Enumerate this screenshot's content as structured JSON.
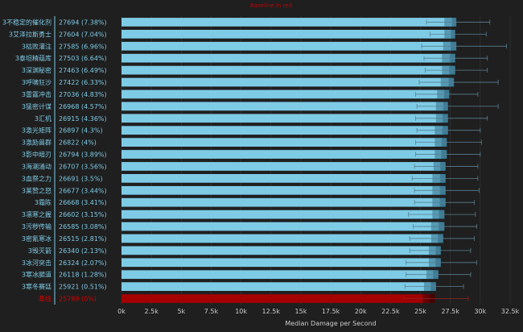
{
  "chart_data": {
    "type": "bar",
    "orientation": "horizontal",
    "title": "Baseline in red",
    "xlabel": "Median Damage per Second",
    "ylabel": "",
    "xlim": [
      0,
      32500
    ],
    "x_ticks": [
      0,
      2500,
      5000,
      7500,
      10000,
      12500,
      15000,
      17500,
      20000,
      22500,
      25000,
      27500,
      30000,
      32500
    ],
    "x_tick_labels": [
      "0k",
      "2.5k",
      "5k",
      "7.5k",
      "10k",
      "12.5k",
      "15k",
      "17.5k",
      "20k",
      "22.5k",
      "25k",
      "27.5k",
      "30k",
      "32.5k"
    ],
    "grid": "vertical",
    "colors": {
      "bar": "#7ecbe6",
      "bar_dark": "#3f7f9a",
      "baseline_bar": "#a40000",
      "baseline_bar_dark": "#4a0000",
      "label": "#7ecbe6",
      "baseline_label": "#d40000",
      "background": "#1f1f1f",
      "grid": "#3a3a3a"
    },
    "bars": [
      {
        "name": "3不稳定的催化剂",
        "value": 27694,
        "value_label": "27694 (7.38%)",
        "q_low": 27000,
        "q_high": 28000,
        "whisker_low": 25500,
        "whisker_high": 30800
      },
      {
        "name": "3艾泽拉斯勇士",
        "value": 27604,
        "value_label": "27604 (7.04%)",
        "q_low": 27000,
        "q_high": 27900,
        "whisker_low": 25800,
        "whisker_high": 30500
      },
      {
        "name": "3枯败灌注",
        "value": 27585,
        "value_label": "27585 (6.96%)",
        "q_low": 26900,
        "q_high": 28000,
        "whisker_low": 25100,
        "whisker_high": 32200
      },
      {
        "name": "3泰坦精蕴库",
        "value": 27503,
        "value_label": "27503 (6.64%)",
        "q_low": 26800,
        "q_high": 27900,
        "whisker_low": 25300,
        "whisker_high": 30600
      },
      {
        "name": "3深渊秘密",
        "value": 27463,
        "value_label": "27463 (6.49%)",
        "q_low": 26800,
        "q_high": 27900,
        "whisker_low": 25400,
        "whisker_high": 30600
      },
      {
        "name": "3呼啸狂沙",
        "value": 27422,
        "value_label": "27422 (6.33%)",
        "q_low": 26700,
        "q_high": 27800,
        "whisker_low": 24900,
        "whisker_high": 31500
      },
      {
        "name": "3雷霆冲击",
        "value": 27036,
        "value_label": "27036 (4.83%)",
        "q_low": 26400,
        "q_high": 27400,
        "whisker_low": 24600,
        "whisker_high": 29800
      },
      {
        "name": "3猛密计谋",
        "value": 26968,
        "value_label": "26968 (4.57%)",
        "q_low": 26300,
        "q_high": 27300,
        "whisker_low": 24700,
        "whisker_high": 31500
      },
      {
        "name": "3汇机",
        "value": 26915,
        "value_label": "26915 (4.36%)",
        "q_low": 26300,
        "q_high": 27300,
        "whisker_low": 24600,
        "whisker_high": 30600
      },
      {
        "name": "3激光矩阵",
        "value": 26897,
        "value_label": "26897 (4.3%)",
        "q_low": 26200,
        "q_high": 27300,
        "whisker_low": 24700,
        "whisker_high": 30000
      },
      {
        "name": "3激励兽群",
        "value": 26822,
        "value_label": "26822 (4%)",
        "q_low": 26200,
        "q_high": 27200,
        "whisker_low": 24600,
        "whisker_high": 30100
      },
      {
        "name": "3影中暗刃",
        "value": 26794,
        "value_label": "26794 (3.89%)",
        "q_low": 26200,
        "q_high": 27200,
        "whisker_low": 24600,
        "whisker_high": 30000
      },
      {
        "name": "3海潮涌动",
        "value": 26707,
        "value_label": "26707 (3.56%)",
        "q_low": 26100,
        "q_high": 27100,
        "whisker_low": 24500,
        "whisker_high": 29800
      },
      {
        "name": "3血祭之力",
        "value": 26691,
        "value_label": "26691 (3.5%)",
        "q_low": 26000,
        "q_high": 27100,
        "whisker_low": 24300,
        "whisker_high": 29800
      },
      {
        "name": "3莱赞之怒",
        "value": 26677,
        "value_label": "26677 (3.44%)",
        "q_low": 26000,
        "q_high": 27100,
        "whisker_low": 24500,
        "whisker_high": 29900
      },
      {
        "name": "3霜陈",
        "value": 26668,
        "value_label": "26668 (3.41%)",
        "q_low": 26000,
        "q_high": 27100,
        "whisker_low": 24500,
        "whisker_high": 29500
      },
      {
        "name": "3凛寒之握",
        "value": 26602,
        "value_label": "26602 (3.15%)",
        "q_low": 26000,
        "q_high": 27000,
        "whisker_low": 24000,
        "whisker_high": 29600
      },
      {
        "name": "3污秽传输",
        "value": 26585,
        "value_label": "26585 (3.08%)",
        "q_low": 25900,
        "q_high": 27000,
        "whisker_low": 24400,
        "whisker_high": 29700
      },
      {
        "name": "3密氰寒冰",
        "value": 26515,
        "value_label": "26515 (2.81%)",
        "q_low": 25900,
        "q_high": 26900,
        "whisker_low": 24100,
        "whisker_high": 29500
      },
      {
        "name": "3毁灭箭",
        "value": 26340,
        "value_label": "26340 (2.13%)",
        "q_low": 25700,
        "q_high": 26700,
        "whisker_low": 24100,
        "whisker_high": 29200
      },
      {
        "name": "3冰河突击",
        "value": 26324,
        "value_label": "26324 (2.07%)",
        "q_low": 25700,
        "q_high": 26700,
        "whisker_low": 23800,
        "whisker_high": 29700
      },
      {
        "name": "3寒冰腿道",
        "value": 26118,
        "value_label": "26118 (1.28%)",
        "q_low": 25500,
        "q_high": 26500,
        "whisker_low": 23800,
        "whisker_high": 29200
      },
      {
        "name": "3寒冬赛廷",
        "value": 25921,
        "value_label": "25921 (0.51%)",
        "q_low": 25300,
        "q_high": 26300,
        "whisker_low": 23700,
        "whisker_high": 28600
      },
      {
        "name": "基线",
        "value": 25789,
        "value_label": "25789 (0%)",
        "q_low": 25200,
        "q_high": 26200,
        "whisker_low": 23600,
        "whisker_high": 29000,
        "baseline": true
      }
    ]
  }
}
